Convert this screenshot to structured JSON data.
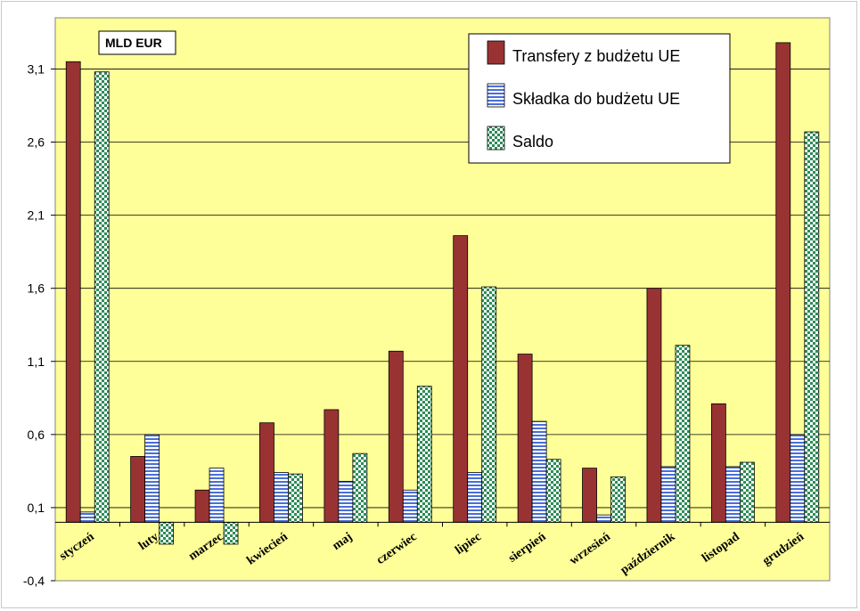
{
  "chart_data": {
    "type": "bar",
    "unit_label": "MLD EUR",
    "categories": [
      "styczeń",
      "luty",
      "marzec",
      "kwiecień",
      "maj",
      "czerwiec",
      "lipiec",
      "sierpień",
      "wrzesień",
      "październik",
      "listopad",
      "grudzień"
    ],
    "series": [
      {
        "name": "Transfery z budżetu UE",
        "color": "#993333",
        "values": [
          3.15,
          0.45,
          0.22,
          0.68,
          0.77,
          1.17,
          1.96,
          1.15,
          0.37,
          1.6,
          0.81,
          3.28
        ]
      },
      {
        "name": "Składka do budżetu UE",
        "color": "#4a6fd6",
        "values": [
          0.07,
          0.6,
          0.37,
          0.34,
          0.28,
          0.22,
          0.34,
          0.69,
          0.05,
          0.38,
          0.38,
          0.6
        ]
      },
      {
        "name": "Saldo",
        "color": "#2e8b57",
        "values": [
          3.08,
          -0.15,
          -0.15,
          0.33,
          0.47,
          0.93,
          1.61,
          0.43,
          0.31,
          1.21,
          0.41,
          2.67
        ]
      }
    ],
    "yticks": [
      "-0,4",
      "0,1",
      "0,6",
      "1,1",
      "1,6",
      "2,1",
      "2,6",
      "3,1"
    ],
    "ylim": [
      -0.4,
      3.45
    ],
    "grid": true,
    "legend_position": "top-right",
    "xlabel": "",
    "ylabel": ""
  }
}
